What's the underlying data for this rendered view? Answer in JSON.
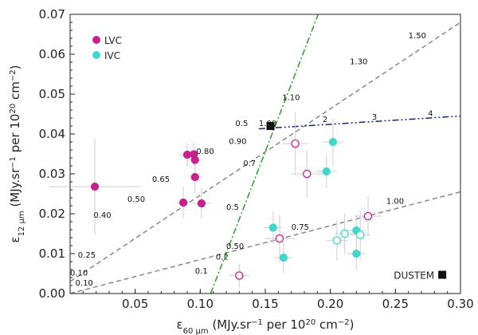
{
  "chart_data": {
    "type": "scatter",
    "xlabel": "ε60 μm (MJy.sr−1 per 1020 cm−2)",
    "ylabel": "ε12 μm (MJy.sr−1 per 1020 cm−2)",
    "xlabel_parts": [
      "ε",
      "60 μm",
      " (MJy.sr",
      "−1",
      " per 10",
      "20",
      " cm",
      "−2",
      ")"
    ],
    "ylabel_parts": [
      "ε",
      "12 μm",
      " (MJy.sr",
      "−1",
      " per 10",
      "20",
      " cm",
      "−2",
      ")"
    ],
    "xlim": [
      0.0,
      0.3
    ],
    "ylim": [
      0.0,
      0.07
    ],
    "x_ticks": [
      {
        "value": 0.05,
        "label": "0.05"
      },
      {
        "value": 0.1,
        "label": "0.10"
      },
      {
        "value": 0.15,
        "label": "0.15"
      },
      {
        "value": 0.2,
        "label": "0.20"
      },
      {
        "value": 0.25,
        "label": "0.25"
      },
      {
        "value": 0.3,
        "label": "0.30"
      }
    ],
    "y_ticks": [
      {
        "value": 0.0,
        "label": "0.00"
      },
      {
        "value": 0.01,
        "label": "0.01"
      },
      {
        "value": 0.02,
        "label": "0.02"
      },
      {
        "value": 0.03,
        "label": "0.03"
      },
      {
        "value": 0.04,
        "label": "0.04"
      },
      {
        "value": 0.05,
        "label": "0.05"
      },
      {
        "value": 0.06,
        "label": "0.06"
      },
      {
        "value": 0.07,
        "label": "0.07"
      }
    ],
    "legend_position": "top-left",
    "series": [
      {
        "name": "LVC",
        "color": "#c8208c",
        "marker": "filled-circle",
        "points": [
          {
            "x": 0.019,
            "y": 0.0268,
            "xerr": 0.035,
            "yerr": 0.012
          },
          {
            "x": 0.087,
            "y": 0.0228,
            "xerr": 0.005,
            "yerr": 0.004
          },
          {
            "x": 0.09,
            "y": 0.0348,
            "xerr": 0.006,
            "yerr": 0.003
          },
          {
            "x": 0.095,
            "y": 0.0349,
            "xerr": 0.005,
            "yerr": 0.003
          },
          {
            "x": 0.096,
            "y": 0.0335,
            "xerr": 0.005,
            "yerr": 0.003
          },
          {
            "x": 0.096,
            "y": 0.0292,
            "xerr": 0.005,
            "yerr": 0.004
          },
          {
            "x": 0.101,
            "y": 0.0226,
            "xerr": 0.007,
            "yerr": 0.004
          },
          {
            "x": 0.13,
            "y": 0.0045,
            "open": true,
            "xerr": 0.008,
            "yerr": 0.003
          },
          {
            "x": 0.161,
            "y": 0.0138,
            "open": true,
            "xerr": 0.012,
            "yerr": 0.006
          },
          {
            "x": 0.173,
            "y": 0.0376,
            "open": true,
            "xerr": 0.01,
            "yerr": 0.008
          },
          {
            "x": 0.182,
            "y": 0.03,
            "open": true,
            "xerr": 0.012,
            "yerr": 0.006
          },
          {
            "x": 0.229,
            "y": 0.0194,
            "open": true,
            "xerr": 0.01,
            "yerr": 0.005
          }
        ]
      },
      {
        "name": "IVC",
        "color": "#40d8c8",
        "marker": "filled-circle",
        "points": [
          {
            "x": 0.156,
            "y": 0.0165,
            "xerr": 0.007,
            "yerr": 0.004
          },
          {
            "x": 0.164,
            "y": 0.009,
            "xerr": 0.007,
            "yerr": 0.004
          },
          {
            "x": 0.197,
            "y": 0.0306,
            "xerr": 0.008,
            "yerr": 0.004
          },
          {
            "x": 0.202,
            "y": 0.038,
            "xerr": 0.008,
            "yerr": 0.006
          },
          {
            "x": 0.205,
            "y": 0.0133,
            "open": true,
            "xerr": 0.008,
            "yerr": 0.005
          },
          {
            "x": 0.211,
            "y": 0.015,
            "open": true,
            "xerr": 0.008,
            "yerr": 0.005
          },
          {
            "x": 0.22,
            "y": 0.0158,
            "xerr": 0.007,
            "yerr": 0.004
          },
          {
            "x": 0.22,
            "y": 0.01,
            "xerr": 0.007,
            "yerr": 0.004
          },
          {
            "x": 0.223,
            "y": 0.0147,
            "open": true,
            "xerr": 0.008,
            "yerr": 0.006
          }
        ]
      },
      {
        "name": "DUSTEM",
        "color": "#111111",
        "marker": "filled-square",
        "points": [
          {
            "x": 0.154,
            "y": 0.042
          },
          {
            "x": 0.286,
            "y": 0.0047
          }
        ]
      }
    ],
    "lines": [
      {
        "id": "upper-dashed",
        "style": "dashed",
        "color": "#888888",
        "points": [
          [
            0.0,
            0.003
          ],
          [
            0.3,
            0.068
          ]
        ],
        "labels": [
          {
            "text": "0.10",
            "x": 0.0,
            "y": 0.0045
          },
          {
            "text": "0.25",
            "x": 0.006,
            "y": 0.009
          },
          {
            "text": "0.40",
            "x": 0.018,
            "y": 0.019
          },
          {
            "text": "0.50",
            "x": 0.044,
            "y": 0.023
          },
          {
            "text": "0.65",
            "x": 0.063,
            "y": 0.028
          },
          {
            "text": "0.80",
            "x": 0.097,
            "y": 0.035
          },
          {
            "text": "0.90",
            "x": 0.122,
            "y": 0.0375
          },
          {
            "text": "1.00",
            "x": 0.145,
            "y": 0.042
          },
          {
            "text": "1.10",
            "x": 0.163,
            "y": 0.0485
          },
          {
            "text": "1.30",
            "x": 0.215,
            "y": 0.0575
          },
          {
            "text": "1.50",
            "x": 0.26,
            "y": 0.064
          }
        ]
      },
      {
        "id": "lower-dashed",
        "style": "dashed",
        "color": "#888888",
        "points": [
          [
            0.0,
            0.0
          ],
          [
            0.3,
            0.0255
          ]
        ],
        "labels": [
          {
            "text": "0.10",
            "x": 0.004,
            "y": 0.002
          },
          {
            "text": "0.2",
            "x": 0.112,
            "y": 0.0085
          },
          {
            "text": "0.50",
            "x": 0.12,
            "y": 0.0112
          },
          {
            "text": "0.75",
            "x": 0.17,
            "y": 0.016
          },
          {
            "text": "1.00",
            "x": 0.243,
            "y": 0.0225
          }
        ]
      },
      {
        "id": "green-dashdot",
        "style": "dashdot",
        "color": "#2c9a2c",
        "points": [
          [
            0.108,
            0.0
          ],
          [
            0.193,
            0.072
          ]
        ],
        "labels": [
          {
            "text": "0.1",
            "x": 0.096,
            "y": 0.005
          },
          {
            "text": "0.5",
            "x": 0.12,
            "y": 0.021
          },
          {
            "text": "0.7",
            "x": 0.133,
            "y": 0.032
          },
          {
            "text": "0.5",
            "x": 0.127,
            "y": 0.042
          }
        ]
      },
      {
        "id": "blue-dashdotdot",
        "style": "dashdotdot",
        "color": "#1a237e",
        "points": [
          [
            0.145,
            0.0413
          ],
          [
            0.3,
            0.0445
          ]
        ],
        "labels": [
          {
            "text": "2",
            "x": 0.194,
            "y": 0.043
          },
          {
            "text": "3",
            "x": 0.232,
            "y": 0.0436
          },
          {
            "text": "4",
            "x": 0.275,
            "y": 0.0445
          }
        ]
      }
    ]
  }
}
